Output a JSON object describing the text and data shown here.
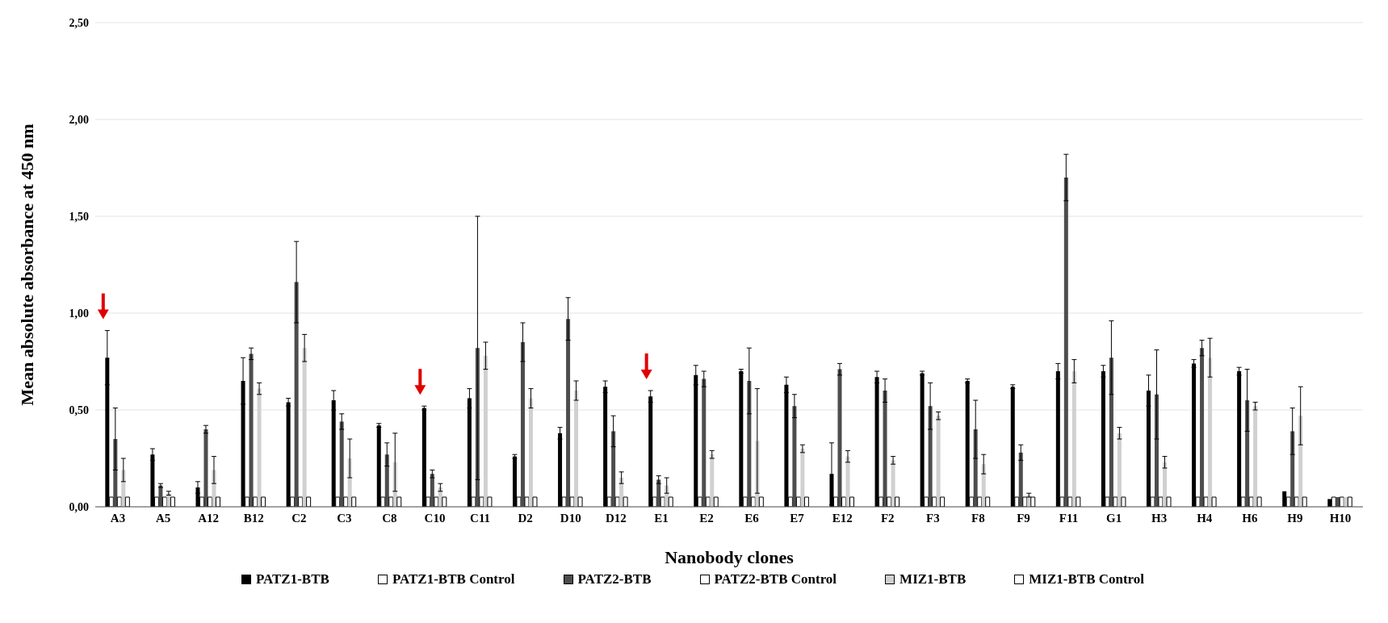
{
  "chart_data": {
    "type": "bar",
    "xlabel": "Nanobody clones",
    "ylabel": "Mean absolute absorbance at 450 nm",
    "categories": [
      "A3",
      "A5",
      "A12",
      "B12",
      "C2",
      "C3",
      "C8",
      "C10",
      "C11",
      "D2",
      "D10",
      "D12",
      "E1",
      "E2",
      "E6",
      "E7",
      "E12",
      "F2",
      "F3",
      "F8",
      "F9",
      "F11",
      "G1",
      "H3",
      "H4",
      "H6",
      "H9",
      "H10"
    ],
    "series": [
      {
        "name": "PATZ1-BTB",
        "color": "#000000",
        "values": [
          0.77,
          0.27,
          0.1,
          0.65,
          0.54,
          0.55,
          0.42,
          0.51,
          0.56,
          0.26,
          0.38,
          0.62,
          0.57,
          0.68,
          0.7,
          0.63,
          0.17,
          0.67,
          0.69,
          0.65,
          0.62,
          0.7,
          0.7,
          0.6,
          0.74,
          0.7,
          0.08,
          0.04
        ],
        "errors": [
          0.14,
          0.03,
          0.03,
          0.12,
          0.02,
          0.05,
          0.01,
          0.01,
          0.05,
          0.01,
          0.03,
          0.03,
          0.03,
          0.05,
          0.01,
          0.04,
          0.16,
          0.03,
          0.01,
          0.01,
          0.01,
          0.04,
          0.03,
          0.08,
          0.02,
          0.02,
          null,
          null
        ]
      },
      {
        "name": "PATZ1-BTB Control",
        "color": "#ffffff",
        "values": [
          0.05,
          0.05,
          0.05,
          0.05,
          0.05,
          0.05,
          0.05,
          0.05,
          0.05,
          0.05,
          0.05,
          0.05,
          0.05,
          0.05,
          0.05,
          0.05,
          0.05,
          0.05,
          0.05,
          0.05,
          0.05,
          0.05,
          0.05,
          0.05,
          0.05,
          0.05,
          0.05,
          0.05
        ]
      },
      {
        "name": "PATZ2-BTB",
        "color": "#4d4d4d",
        "values": [
          0.35,
          0.11,
          0.4,
          0.79,
          1.16,
          0.44,
          0.27,
          0.17,
          0.82,
          0.85,
          0.97,
          0.39,
          0.14,
          0.66,
          0.65,
          0.52,
          0.71,
          0.6,
          0.52,
          0.4,
          0.28,
          1.7,
          0.77,
          0.58,
          0.82,
          0.55,
          0.39,
          0.05
        ],
        "errors": [
          0.16,
          0.01,
          0.02,
          0.03,
          0.21,
          0.04,
          0.06,
          0.02,
          0.68,
          0.1,
          0.11,
          0.08,
          0.02,
          0.04,
          0.17,
          0.06,
          0.03,
          0.06,
          0.12,
          0.15,
          0.04,
          0.12,
          0.19,
          0.23,
          0.04,
          0.16,
          0.12,
          null
        ]
      },
      {
        "name": "PATZ2-BTB Control",
        "color": "#ffffff",
        "values": [
          0.05,
          0.05,
          0.05,
          0.05,
          0.05,
          0.05,
          0.05,
          0.05,
          0.05,
          0.05,
          0.05,
          0.05,
          0.05,
          0.05,
          0.05,
          0.05,
          0.05,
          0.05,
          0.05,
          0.05,
          0.05,
          0.05,
          0.05,
          0.05,
          0.05,
          0.05,
          0.05,
          0.05
        ]
      },
      {
        "name": "MIZ1-BTB",
        "color": "#d0d0d0",
        "values": [
          0.19,
          0.07,
          0.19,
          0.61,
          0.82,
          0.25,
          0.23,
          0.1,
          0.78,
          0.56,
          0.6,
          0.15,
          0.11,
          0.27,
          0.34,
          0.3,
          0.26,
          0.24,
          0.47,
          0.22,
          0.06,
          0.7,
          0.38,
          0.23,
          0.77,
          0.52,
          0.47,
          0.05
        ],
        "errors": [
          0.06,
          0.01,
          0.07,
          0.03,
          0.07,
          0.1,
          0.15,
          0.02,
          0.07,
          0.05,
          0.05,
          0.03,
          0.04,
          0.02,
          0.27,
          0.02,
          0.03,
          0.02,
          0.02,
          0.05,
          0.01,
          0.06,
          0.03,
          0.03,
          0.1,
          0.02,
          0.15,
          null
        ]
      },
      {
        "name": "MIZ1-BTB Control",
        "color": "#ffffff",
        "values": [
          0.05,
          0.05,
          0.05,
          0.05,
          0.05,
          0.05,
          0.05,
          0.05,
          0.05,
          0.05,
          0.05,
          0.05,
          0.05,
          0.05,
          0.05,
          0.05,
          0.05,
          0.05,
          0.05,
          0.05,
          0.05,
          0.05,
          0.05,
          0.05,
          0.05,
          0.05,
          0.05,
          0.05
        ]
      }
    ],
    "ylim": [
      0,
      2.5
    ],
    "yticks": [
      {
        "value": 0,
        "label": "0,00"
      },
      {
        "value": 0.5,
        "label": "0,50"
      },
      {
        "value": 1,
        "label": "1,00"
      },
      {
        "value": 1.5,
        "label": "1,50"
      },
      {
        "value": 2,
        "label": "2,00"
      },
      {
        "value": 2.5,
        "label": "2,50"
      }
    ],
    "grid": "y",
    "legend": "bottom"
  }
}
